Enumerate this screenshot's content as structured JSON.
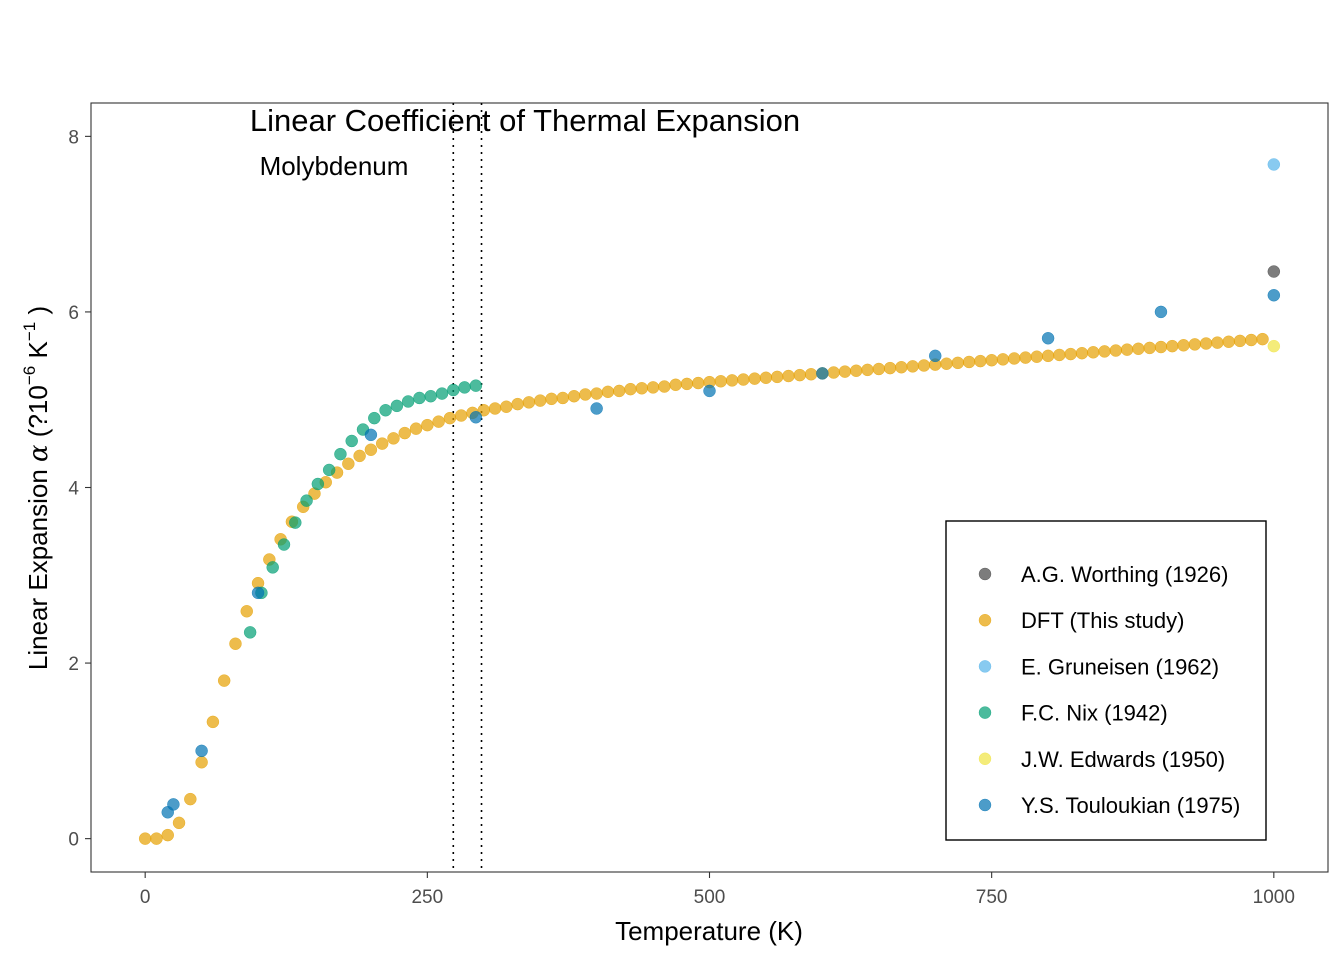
{
  "chart_data": {
    "type": "scatter",
    "title": "Linear Coefficient of Thermal Expansion",
    "subtitle": "Molybdenum",
    "xlabel": "Temperature (K)",
    "ylabel": {
      "main": "Linear Expansion",
      "symbol": "α",
      "unit_open": "(?10",
      "unit_exp": "−6",
      "unit_k": "K",
      "unit_kexp": "−1",
      "unit_close": ")"
    },
    "xlim": [
      -48,
      1048
    ],
    "ylim": [
      -0.38,
      8.38
    ],
    "x_ticks": [
      0,
      250,
      500,
      750,
      1000
    ],
    "y_ticks": [
      0,
      2,
      4,
      6,
      8
    ],
    "grid": false,
    "vlines": [
      273,
      298
    ],
    "legend_position": "bottom-right",
    "series": [
      {
        "name": "A.G. Worthing (1926)",
        "color": "#444444",
        "points": [
          [
            1000,
            6.46
          ]
        ]
      },
      {
        "name": "DFT (This study)",
        "color": "#E69F00",
        "points": [
          [
            0,
            0.0
          ],
          [
            10,
            0.0
          ],
          [
            20,
            0.04
          ],
          [
            30,
            0.18
          ],
          [
            40,
            0.45
          ],
          [
            50,
            0.87
          ],
          [
            60,
            1.33
          ],
          [
            70,
            1.8
          ],
          [
            80,
            2.22
          ],
          [
            90,
            2.59
          ],
          [
            100,
            2.91
          ],
          [
            110,
            3.18
          ],
          [
            120,
            3.41
          ],
          [
            130,
            3.61
          ],
          [
            140,
            3.78
          ],
          [
            150,
            3.93
          ],
          [
            160,
            4.06
          ],
          [
            170,
            4.17
          ],
          [
            180,
            4.27
          ],
          [
            190,
            4.36
          ],
          [
            200,
            4.43
          ],
          [
            210,
            4.5
          ],
          [
            220,
            4.56
          ],
          [
            230,
            4.62
          ],
          [
            240,
            4.67
          ],
          [
            250,
            4.71
          ],
          [
            260,
            4.75
          ],
          [
            270,
            4.79
          ],
          [
            280,
            4.82
          ],
          [
            290,
            4.85
          ],
          [
            300,
            4.88
          ],
          [
            310,
            4.9
          ],
          [
            320,
            4.92
          ],
          [
            330,
            4.95
          ],
          [
            340,
            4.97
          ],
          [
            350,
            4.99
          ],
          [
            360,
            5.01
          ],
          [
            370,
            5.02
          ],
          [
            380,
            5.04
          ],
          [
            390,
            5.06
          ],
          [
            400,
            5.07
          ],
          [
            410,
            5.09
          ],
          [
            420,
            5.1
          ],
          [
            430,
            5.12
          ],
          [
            440,
            5.13
          ],
          [
            450,
            5.14
          ],
          [
            460,
            5.15
          ],
          [
            470,
            5.17
          ],
          [
            480,
            5.18
          ],
          [
            490,
            5.19
          ],
          [
            500,
            5.2
          ],
          [
            510,
            5.21
          ],
          [
            520,
            5.22
          ],
          [
            530,
            5.23
          ],
          [
            540,
            5.24
          ],
          [
            550,
            5.25
          ],
          [
            560,
            5.26
          ],
          [
            570,
            5.27
          ],
          [
            580,
            5.28
          ],
          [
            590,
            5.29
          ],
          [
            600,
            5.3
          ],
          [
            610,
            5.31
          ],
          [
            620,
            5.32
          ],
          [
            630,
            5.33
          ],
          [
            640,
            5.34
          ],
          [
            650,
            5.35
          ],
          [
            660,
            5.36
          ],
          [
            670,
            5.37
          ],
          [
            680,
            5.38
          ],
          [
            690,
            5.39
          ],
          [
            700,
            5.4
          ],
          [
            710,
            5.41
          ],
          [
            720,
            5.42
          ],
          [
            730,
            5.43
          ],
          [
            740,
            5.44
          ],
          [
            750,
            5.45
          ],
          [
            760,
            5.46
          ],
          [
            770,
            5.47
          ],
          [
            780,
            5.48
          ],
          [
            790,
            5.49
          ],
          [
            800,
            5.5
          ],
          [
            810,
            5.51
          ],
          [
            820,
            5.52
          ],
          [
            830,
            5.53
          ],
          [
            840,
            5.54
          ],
          [
            850,
            5.55
          ],
          [
            860,
            5.56
          ],
          [
            870,
            5.57
          ],
          [
            880,
            5.58
          ],
          [
            890,
            5.59
          ],
          [
            900,
            5.6
          ],
          [
            910,
            5.61
          ],
          [
            920,
            5.62
          ],
          [
            930,
            5.63
          ],
          [
            940,
            5.64
          ],
          [
            950,
            5.65
          ],
          [
            960,
            5.66
          ],
          [
            970,
            5.67
          ],
          [
            980,
            5.68
          ],
          [
            990,
            5.69
          ]
        ]
      },
      {
        "name": "E. Gruneisen (1962)",
        "color": "#56B4E9",
        "points": [
          [
            1000,
            7.68
          ]
        ]
      },
      {
        "name": "F.C. Nix (1942)",
        "color": "#009E73",
        "points": [
          [
            93,
            2.35
          ],
          [
            103,
            2.8
          ],
          [
            113,
            3.09
          ],
          [
            123,
            3.35
          ],
          [
            133,
            3.6
          ],
          [
            143,
            3.85
          ],
          [
            153,
            4.04
          ],
          [
            163,
            4.2
          ],
          [
            173,
            4.38
          ],
          [
            183,
            4.53
          ],
          [
            193,
            4.66
          ],
          [
            203,
            4.79
          ],
          [
            213,
            4.88
          ],
          [
            223,
            4.93
          ],
          [
            233,
            4.98
          ],
          [
            243,
            5.02
          ],
          [
            253,
            5.04
          ],
          [
            263,
            5.07
          ],
          [
            273,
            5.11
          ],
          [
            283,
            5.14
          ],
          [
            293,
            5.16
          ]
        ]
      },
      {
        "name": "J.W. Edwards (1950)",
        "color": "#F0E442",
        "points": [
          [
            1000,
            5.61
          ]
        ]
      },
      {
        "name": "Y.S. Touloukian (1975)",
        "color": "#0072B2",
        "points": [
          [
            20,
            0.3
          ],
          [
            25,
            0.39
          ],
          [
            50,
            1.0
          ],
          [
            100,
            2.8
          ],
          [
            200,
            4.6
          ],
          [
            293,
            4.8
          ],
          [
            400,
            4.9
          ],
          [
            500,
            5.1
          ],
          [
            600,
            5.3
          ],
          [
            700,
            5.5
          ],
          [
            800,
            5.7
          ],
          [
            900,
            6.0
          ],
          [
            1000,
            6.19
          ]
        ]
      }
    ]
  }
}
